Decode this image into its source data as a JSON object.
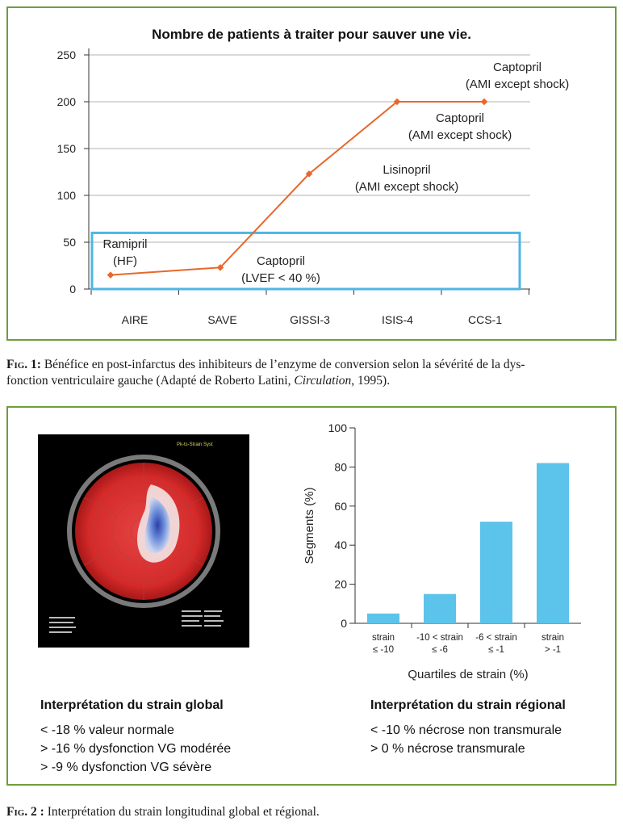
{
  "figure1": {
    "caption_label": "Fig. 1:",
    "caption_text_a": "Bénéfice en post-infarctus des inhibiteurs de l’enzyme de conversion selon la sévérité de la dys-",
    "caption_text_b_pre": "fonction ventriculaire gauche (Adapté de Roberto Latini, ",
    "caption_journal": "Circulation",
    "caption_text_b_post": ", 1995)."
  },
  "figure2": {
    "caption_label": "Fig. 2 :",
    "caption_text": "Interprétation du strain longitudinal global et régional.",
    "global": {
      "heading": "Interprétation du strain global",
      "lines": [
        "< -18 % valeur normale",
        "> -16 % dysfonction VG modérée",
        "> -9 % dysfonction VG sévère"
      ]
    },
    "regional": {
      "heading": "Interprétation du strain régional",
      "lines": [
        "< -10 % nécrose non transmurale",
        "> 0 % nécrose transmurale"
      ]
    },
    "bullseye": {
      "header_text": "Pk-ts-Strain Syst",
      "image_desc": "bullseye-strain-map"
    }
  },
  "chart_data": [
    {
      "type": "line",
      "title": "Nombre de patients à traiter pour sauver une vie.",
      "categories": [
        "AIRE",
        "SAVE",
        "GISSI-3",
        "ISIS-4",
        "CCS-1"
      ],
      "values": [
        15,
        23,
        123,
        200,
        200
      ],
      "yticks": [
        0,
        50,
        100,
        150,
        200,
        250
      ],
      "ylim": [
        0,
        250
      ],
      "line_color": "#e8672a",
      "box_color": "#4fb6e3",
      "annotations": [
        {
          "lines": [
            "Ramipril",
            "(HF)"
          ]
        },
        {
          "lines": [
            "Captopril",
            "(LVEF < 40 %)"
          ]
        },
        {
          "lines": [
            "Lisinopril",
            "(AMI except shock)"
          ]
        },
        {
          "lines": [
            "Captopril",
            "(AMI except shock)"
          ]
        },
        {
          "lines": [
            "Captopril",
            "(AMI except shock)"
          ]
        }
      ],
      "grid": true
    },
    {
      "type": "bar",
      "categories": [
        [
          "strain",
          "≤ -10"
        ],
        [
          "-10 < strain",
          "≤ -6"
        ],
        [
          "-6 < strain",
          "≤ -1"
        ],
        [
          "strain",
          "> -1"
        ]
      ],
      "values": [
        5,
        15,
        52,
        82
      ],
      "yticks": [
        0,
        20,
        40,
        60,
        80,
        100
      ],
      "ylim": [
        0,
        100
      ],
      "xlabel": "Quartiles de strain (%)",
      "ylabel": "Segments (%)",
      "bar_color": "#5cc3ea"
    }
  ]
}
